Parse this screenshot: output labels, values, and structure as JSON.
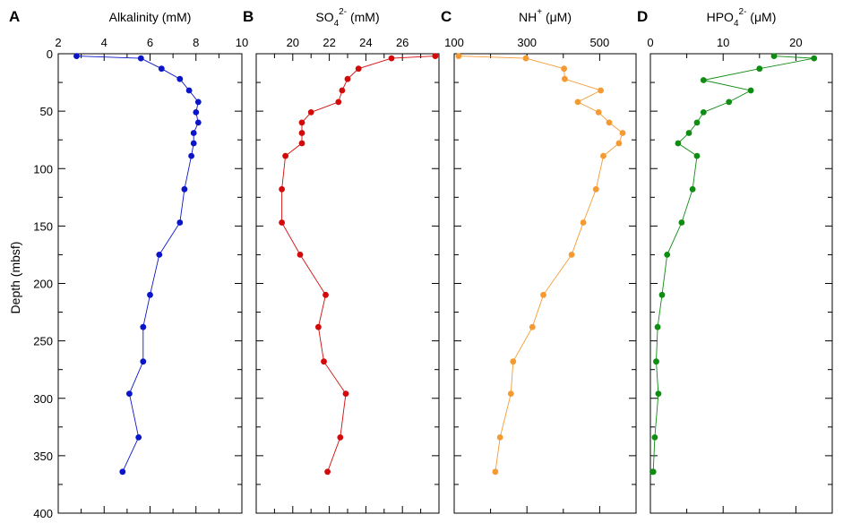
{
  "figure": {
    "ylabel": "Depth (mbsf)",
    "y_ticks": [
      "0",
      "50",
      "100",
      "150",
      "200",
      "250",
      "300",
      "350",
      "400"
    ]
  },
  "chart_data": [
    {
      "type": "line",
      "panel_letter": "A",
      "title": "",
      "xlabel": {
        "main": "Alkalinity (mM)",
        "sub": "",
        "sup": "",
        "suffix": ""
      },
      "ylabel": "Depth (mbsf)",
      "xlim": [
        2,
        10
      ],
      "ylim": [
        0,
        400
      ],
      "y_inverted": true,
      "x_ticks": [
        "2",
        "4",
        "6",
        "8",
        "10"
      ],
      "color": "#0a14c8",
      "series": [
        {
          "x": [
            2.8,
            5.6,
            6.5,
            7.3,
            7.7,
            8.1,
            8.0,
            8.1,
            7.9,
            7.9,
            7.8,
            7.5,
            7.3,
            6.4,
            6.0,
            5.7,
            5.7,
            5.1,
            5.5,
            4.8
          ],
          "y": [
            2,
            4,
            13,
            22,
            32,
            42,
            51,
            60,
            69,
            78,
            89,
            118,
            147,
            175,
            210,
            238,
            268,
            296,
            334,
            364
          ]
        }
      ]
    },
    {
      "type": "line",
      "panel_letter": "B",
      "title": "",
      "xlabel": {
        "main": "SO",
        "sub": "4",
        "sup": "2-",
        "suffix": " (mM)"
      },
      "ylabel": "",
      "xlim": [
        18,
        28
      ],
      "ylim": [
        0,
        400
      ],
      "y_inverted": true,
      "x_ticks": [
        "20",
        "22",
        "24",
        "26"
      ],
      "color": "#d20a0a",
      "series": [
        {
          "x": [
            27.8,
            25.4,
            23.6,
            23.0,
            22.7,
            22.5,
            21.0,
            20.5,
            20.5,
            20.5,
            19.6,
            19.4,
            19.4,
            20.4,
            21.8,
            21.4,
            21.7,
            22.9,
            22.6,
            21.9
          ],
          "y": [
            2,
            4,
            13,
            22,
            32,
            42,
            51,
            60,
            69,
            78,
            89,
            118,
            147,
            175,
            210,
            238,
            268,
            296,
            334,
            364
          ]
        }
      ]
    },
    {
      "type": "line",
      "panel_letter": "C",
      "title": "",
      "xlabel": {
        "main": "NH",
        "sub": "",
        "sup": "+",
        "suffix": " (μM)"
      },
      "ylabel": "",
      "xlim": [
        100,
        600
      ],
      "ylim": [
        0,
        400
      ],
      "y_inverted": true,
      "x_ticks": [
        "100",
        "300",
        "500"
      ],
      "color": "#f59a32",
      "series": [
        {
          "x": [
            112,
            297,
            402,
            404,
            503,
            440,
            497,
            526,
            563,
            553,
            510,
            490,
            455,
            423,
            345,
            315,
            262,
            256,
            226,
            213
          ],
          "y": [
            2,
            4,
            13,
            22,
            32,
            42,
            51,
            60,
            69,
            78,
            89,
            118,
            147,
            175,
            210,
            238,
            268,
            296,
            334,
            364
          ]
        }
      ]
    },
    {
      "type": "line",
      "panel_letter": "D",
      "title": "",
      "xlabel": {
        "main": "HPO",
        "sub": "4",
        "sup": "2-",
        "suffix": " (μM)"
      },
      "ylabel": "",
      "xlim": [
        0,
        25
      ],
      "ylim": [
        0,
        400
      ],
      "y_inverted": true,
      "x_ticks": [
        "0",
        "10",
        "20"
      ],
      "color": "#0f8c12",
      "series": [
        {
          "x": [
            17.0,
            22.5,
            15.0,
            7.3,
            13.8,
            10.8,
            7.3,
            6.4,
            5.3,
            3.8,
            6.4,
            5.8,
            4.3,
            2.3,
            1.6,
            1.0,
            0.8,
            1.1,
            0.6,
            0.4,
            0.3
          ],
          "y": [
            2,
            4,
            13,
            23,
            32,
            42,
            51,
            60,
            69,
            78,
            89,
            118,
            147,
            175,
            210,
            238,
            268,
            296,
            334,
            364,
            364
          ]
        }
      ]
    }
  ]
}
